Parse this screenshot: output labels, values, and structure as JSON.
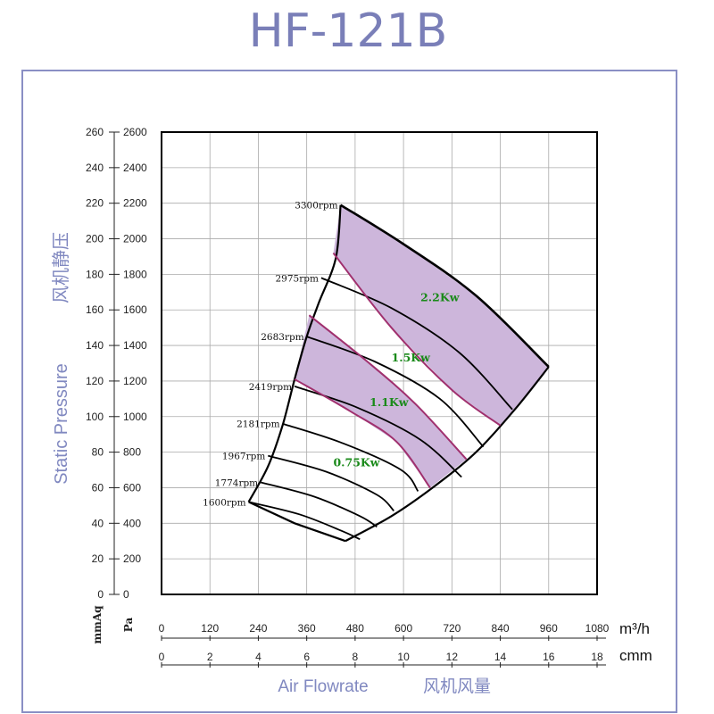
{
  "chart_data": {
    "type": "line",
    "title": "HF-121B",
    "ylabel": "Static Pressure",
    "ylabel_cn": "风机静压",
    "xlabel": "Air Flowrate",
    "xlabel_cn": "风机风量",
    "y_unit_mmaq": "mmAq",
    "y_unit_pa": "Pa",
    "x_unit_m3h": "m³/h",
    "x_unit_cmm": "cmm",
    "xlim_cmm": [
      0,
      18
    ],
    "ylim_mmaq": [
      0,
      260
    ],
    "grid": true,
    "y_ticks_mmaq": [
      "0",
      "20",
      "40",
      "60",
      "80",
      "100",
      "120",
      "140",
      "160",
      "180",
      "200",
      "220",
      "240",
      "260"
    ],
    "y_ticks_pa": [
      "0",
      "200",
      "400",
      "600",
      "800",
      "1000",
      "1200",
      "1400",
      "1600",
      "1800",
      "2000",
      "2200",
      "2400",
      "2600"
    ],
    "x_ticks_m3h": [
      "0",
      "120",
      "240",
      "360",
      "480",
      "600",
      "720",
      "840",
      "960",
      "1080"
    ],
    "x_ticks_cmm": [
      "0",
      "2",
      "4",
      "6",
      "8",
      "10",
      "12",
      "14",
      "16",
      "18"
    ],
    "envelope_left": [
      [
        3.6,
        52
      ],
      [
        4.4,
        72
      ],
      [
        5.0,
        95
      ],
      [
        5.5,
        121
      ],
      [
        6.0,
        145
      ],
      [
        6.5,
        164
      ],
      [
        7.2,
        189
      ],
      [
        7.4,
        219
      ]
    ],
    "envelope_bottom": [
      [
        3.6,
        52
      ],
      [
        5.5,
        40
      ],
      [
        7.6,
        30
      ]
    ],
    "envelope_right": [
      [
        7.6,
        30
      ],
      [
        9.5,
        44
      ],
      [
        11.2,
        60
      ],
      [
        13.0,
        80
      ],
      [
        14.6,
        104
      ],
      [
        16.0,
        128
      ]
    ],
    "series": [
      {
        "name": "3300rpm",
        "points": [
          [
            7.4,
            219
          ],
          [
            10.0,
            197
          ],
          [
            13.0,
            168
          ],
          [
            16.0,
            128
          ]
        ]
      },
      {
        "name": "2975rpm",
        "points": [
          [
            6.6,
            178
          ],
          [
            9.5,
            161
          ],
          [
            12.3,
            136
          ],
          [
            14.5,
            104
          ]
        ]
      },
      {
        "name": "2683rpm",
        "points": [
          [
            6.0,
            145
          ],
          [
            8.8,
            131
          ],
          [
            11.5,
            110
          ],
          [
            13.3,
            83
          ]
        ]
      },
      {
        "name": "2419rpm",
        "points": [
          [
            5.5,
            117
          ],
          [
            8.1,
            105
          ],
          [
            10.7,
            87
          ],
          [
            12.4,
            66
          ]
        ]
      },
      {
        "name": "2181rpm",
        "points": [
          [
            5.0,
            96
          ],
          [
            7.5,
            85
          ],
          [
            9.9,
            70
          ],
          [
            10.6,
            58
          ]
        ]
      },
      {
        "name": "1967rpm",
        "points": [
          [
            4.4,
            78
          ],
          [
            6.8,
            69
          ],
          [
            8.9,
            56
          ],
          [
            9.6,
            47
          ]
        ]
      },
      {
        "name": "1774rpm",
        "points": [
          [
            4.1,
            63
          ],
          [
            6.3,
            55
          ],
          [
            8.2,
            44
          ],
          [
            8.9,
            38
          ]
        ]
      },
      {
        "name": "1600rpm",
        "points": [
          [
            3.6,
            52
          ],
          [
            5.7,
            45
          ],
          [
            7.4,
            36
          ],
          [
            8.2,
            31
          ]
        ]
      }
    ],
    "power_lines": [
      {
        "label": "2.2Kw",
        "label_at": [
          10.7,
          165
        ],
        "points": [
          [
            7.1,
            192
          ],
          [
            9.5,
            150
          ],
          [
            12.0,
            115
          ],
          [
            14.0,
            95
          ]
        ]
      },
      {
        "label": "1.5Kw",
        "label_at": [
          9.5,
          131
        ],
        "points": [
          [
            6.1,
            157
          ],
          [
            8.5,
            131
          ],
          [
            10.5,
            107
          ],
          [
            12.6,
            76
          ]
        ]
      },
      {
        "label": "1.1Kw",
        "label_at": [
          8.6,
          106
        ],
        "points": [
          [
            5.5,
            121
          ],
          [
            7.8,
            103
          ],
          [
            9.7,
            86
          ],
          [
            11.1,
            60
          ]
        ]
      },
      {
        "label": "0.75Kw",
        "label_at": [
          7.1,
          72
        ],
        "points": []
      }
    ],
    "shaded_bands": [
      {
        "upper": "3300rpm",
        "lower_power": "2.2Kw"
      },
      {
        "upper": "2683rpm",
        "lower_power": "1.5Kw",
        "top_power": "1.5Kw"
      },
      {
        "upper": "2419rpm",
        "lower_power": "1.1Kw"
      }
    ],
    "colors": {
      "title": "#7a7fb8",
      "frame": "#8a8fc4",
      "axis_title": "#8088c0",
      "shade": "#cdb6db",
      "power_line": "#a0306e",
      "power_label": "#1a8a1a",
      "curve": "#000000",
      "grid": "#aaaaaa"
    }
  }
}
